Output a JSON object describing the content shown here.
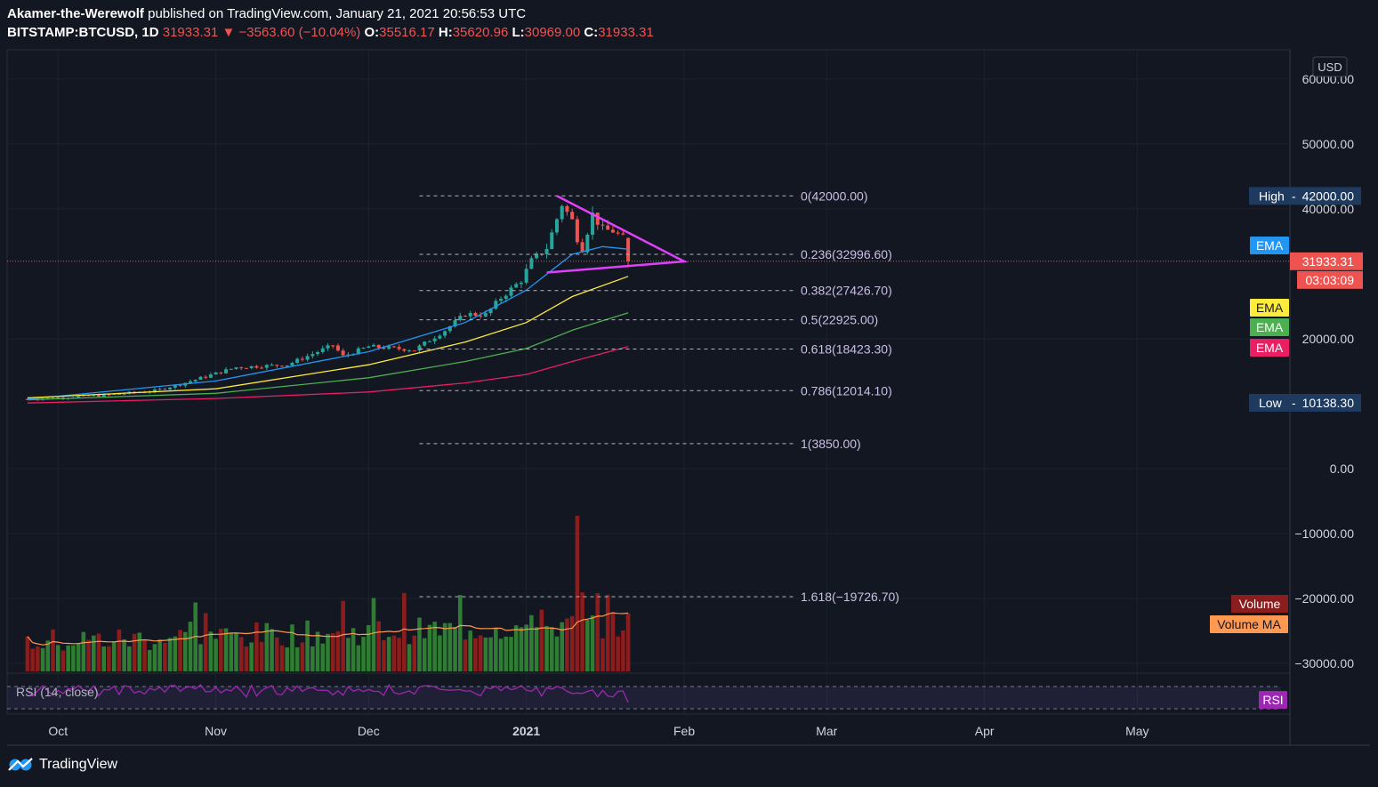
{
  "header": {
    "author": "Akamer-the-Werewolf",
    "published": "published on TradingView.com, January 21, 2021 20:56:53 UTC",
    "symbol": "BITSTAMP:BTCUSD, 1D",
    "last": "31933.31",
    "change_arrow": "▼",
    "change": "−3563.60 (−10.04%)",
    "o_label": "O:",
    "o": "35516.17",
    "h_label": "H:",
    "h": "35620.96",
    "l_label": "L:",
    "l": "30969.00",
    "c_label": "C:",
    "c": "31933.31"
  },
  "footer": {
    "brand": "TradingView",
    "logo_icon": "tradingview-logo-icon"
  },
  "colors": {
    "background": "#131722",
    "up": "#26a69a",
    "down": "#ef5350",
    "vol_up": "#2e7d32",
    "vol_down": "#8b1d1d",
    "ema_blue": "#2196f3",
    "ema_yellow": "#ffeb3b",
    "ema_green": "#4caf50",
    "ema_red": "#e91e63",
    "triangle": "#e040fb",
    "rsi": "#9c27b0",
    "volume_ma": "#ff9850",
    "price_line": "#ef5350"
  },
  "chart_data": {
    "type": "candlestick",
    "currency_label": "USD",
    "y_ticks": [
      "60000.00",
      "50000.00",
      "40000.00",
      "20000.00",
      "0.00",
      "−10000.00",
      "−20000.00",
      "−30000.00"
    ],
    "y_tick_values": [
      60000,
      50000,
      40000,
      20000,
      0,
      -10000,
      -20000,
      -30000
    ],
    "x_ticks": [
      "Oct",
      "Nov",
      "Dec",
      "2021",
      "Feb",
      "Mar",
      "Apr",
      "May"
    ],
    "x_tick_dates": [
      "2020-10-01",
      "2020-11-01",
      "2020-12-01",
      "2021-01-01",
      "2021-02-01",
      "2021-03-01",
      "2021-04-01",
      "2021-05-01"
    ],
    "date_range": [
      "2020-09-21",
      "2021-05-31"
    ],
    "y_range": [
      -31500,
      64500
    ],
    "ohlc_range": [
      "2020-09-25",
      "2021-01-21"
    ],
    "close_anchors": [
      [
        "2020-09-25",
        10700
      ],
      [
        "2020-10-10",
        11300
      ],
      [
        "2020-10-20",
        12000
      ],
      [
        "2020-10-25",
        13000
      ],
      [
        "2020-11-05",
        15600
      ],
      [
        "2020-11-15",
        16000
      ],
      [
        "2020-11-24",
        19000
      ],
      [
        "2020-11-26",
        17300
      ],
      [
        "2020-12-01",
        18800
      ],
      [
        "2020-12-10",
        18300
      ],
      [
        "2020-12-16",
        21300
      ],
      [
        "2020-12-20",
        23800
      ],
      [
        "2020-12-24",
        23700
      ],
      [
        "2020-12-27",
        26300
      ],
      [
        "2020-12-31",
        29000
      ],
      [
        "2021-01-02",
        32000
      ],
      [
        "2021-01-05",
        34000
      ],
      [
        "2021-01-08",
        40700
      ],
      [
        "2021-01-10",
        38200
      ],
      [
        "2021-01-11",
        35500
      ],
      [
        "2021-01-12",
        33900
      ],
      [
        "2021-01-14",
        39200
      ],
      [
        "2021-01-16",
        36800
      ],
      [
        "2021-01-18",
        36600
      ],
      [
        "2021-01-20",
        35500
      ],
      [
        "2021-01-21",
        31933.31
      ]
    ],
    "last_candle": {
      "date": "2021-01-21",
      "open": 35516.17,
      "high": 35620.96,
      "low": 30969.0,
      "close": 31933.31
    },
    "ema_series": [
      {
        "label": "EMA",
        "color_key": "ema_blue",
        "points": [
          [
            "2020-09-25",
            10700
          ],
          [
            "2020-11-01",
            13500
          ],
          [
            "2020-12-01",
            18000
          ],
          [
            "2020-12-20",
            22500
          ],
          [
            "2021-01-01",
            27500
          ],
          [
            "2021-01-10",
            33000
          ],
          [
            "2021-01-16",
            34200
          ],
          [
            "2021-01-21",
            33800
          ]
        ]
      },
      {
        "label": "EMA",
        "color_key": "ema_yellow",
        "points": [
          [
            "2020-09-25",
            10900
          ],
          [
            "2020-11-01",
            12300
          ],
          [
            "2020-12-01",
            16000
          ],
          [
            "2020-12-20",
            19500
          ],
          [
            "2021-01-01",
            22500
          ],
          [
            "2021-01-10",
            26500
          ],
          [
            "2021-01-21",
            29600
          ]
        ]
      },
      {
        "label": "EMA",
        "color_key": "ema_green",
        "points": [
          [
            "2020-09-25",
            10600
          ],
          [
            "2020-11-01",
            11600
          ],
          [
            "2020-12-01",
            14000
          ],
          [
            "2020-12-20",
            16500
          ],
          [
            "2021-01-01",
            18500
          ],
          [
            "2021-01-10",
            21300
          ],
          [
            "2021-01-21",
            24000
          ]
        ]
      },
      {
        "label": "EMA",
        "color_key": "ema_red",
        "points": [
          [
            "2020-09-25",
            10100
          ],
          [
            "2020-11-01",
            10800
          ],
          [
            "2020-12-01",
            11800
          ],
          [
            "2020-12-20",
            13200
          ],
          [
            "2021-01-01",
            14500
          ],
          [
            "2021-01-10",
            16500
          ],
          [
            "2021-01-21",
            18800
          ]
        ]
      }
    ],
    "fib_start_date": "2020-12-11",
    "fib_levels": [
      {
        "label": "0(42000.00)",
        "value": 42000
      },
      {
        "label": "0.236(32996.60)",
        "value": 32996.6
      },
      {
        "label": "0.382(27426.70)",
        "value": 27426.7
      },
      {
        "label": "0.5(22925.00)",
        "value": 22925
      },
      {
        "label": "0.618(18423.30)",
        "value": 18423.3
      },
      {
        "label": "0.786(12014.10)",
        "value": 12014.1
      },
      {
        "label": "1(3850.00)",
        "value": 3850
      },
      {
        "label": "1.618(−19726.70)",
        "value": -19726.7
      }
    ],
    "triangle": [
      [
        "2021-01-07",
        42000
      ],
      [
        "2021-02-01",
        31900
      ],
      [
        "2021-01-05",
        30200
      ]
    ],
    "price_markers": [
      {
        "label": "High",
        "value_text": "42000.00",
        "value": 42000
      },
      {
        "label": "Low",
        "value_text": "10138.30",
        "value": 10138.3
      }
    ],
    "last_price_text": "31933.31",
    "countdown": "03:03:09",
    "legend_labels": [
      "EMA",
      "EMA",
      "EMA",
      "EMA"
    ],
    "volume_label": "Volume",
    "volume_ma_label": "Volume MA",
    "rsi_pane_label": "RSI (14, close)",
    "rsi_badge": "RSI",
    "volume_spike_date": "2021-01-11",
    "ordered_legend": [
      {
        "label": "EMA",
        "color_key": "ema_blue",
        "value": 36000
      },
      {
        "label": "EMA",
        "color_key": "ema_yellow",
        "value": 25500
      },
      {
        "label": "EMA",
        "color_key": "ema_green",
        "value": 22500
      },
      {
        "label": "EMA",
        "color_key": "ema_red",
        "value": 19300
      }
    ]
  }
}
